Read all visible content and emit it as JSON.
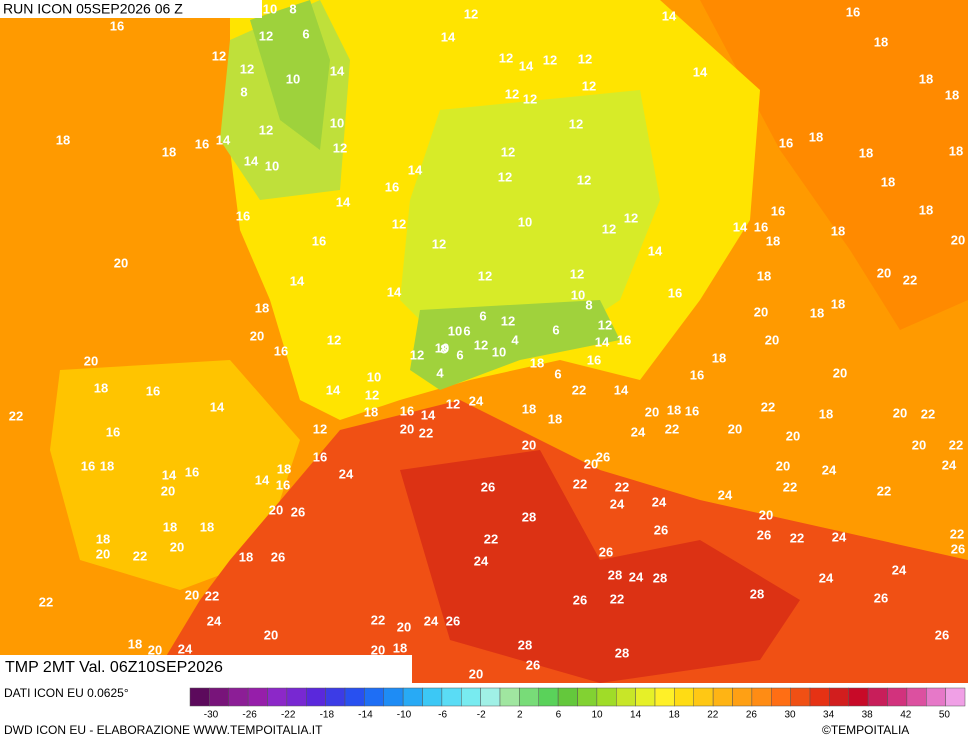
{
  "header": {
    "title": "RUN ICON 05SEP2026 06 Z"
  },
  "map_labels": [
    10,
    8,
    16,
    12,
    6,
    14,
    12,
    14,
    16,
    18,
    12,
    12,
    14,
    12,
    14,
    12,
    12,
    14,
    18,
    10,
    8,
    18,
    12,
    12,
    12,
    10,
    12,
    12,
    18,
    16,
    14,
    18,
    16,
    18,
    12,
    18,
    12,
    18,
    14,
    10,
    14,
    12,
    12,
    18,
    16,
    14,
    18,
    16,
    16,
    12,
    10,
    12,
    12,
    14,
    16,
    18,
    20,
    16,
    12,
    18,
    20,
    14,
    20,
    22,
    14,
    12,
    12,
    18,
    14,
    16,
    10,
    18,
    8,
    18,
    18,
    20,
    6,
    12,
    10,
    6,
    12,
    6,
    20,
    12,
    12,
    14,
    16,
    8,
    4,
    20,
    16,
    12,
    10,
    6,
    10,
    18,
    18,
    20,
    16,
    6,
    4,
    10,
    16,
    18,
    16,
    14,
    20,
    22,
    14,
    12,
    22,
    14,
    18,
    16,
    14,
    12,
    24,
    18,
    18,
    20,
    18,
    16,
    22,
    18,
    20,
    22,
    16,
    12,
    20,
    22,
    24,
    22,
    20,
    20,
    20,
    22,
    20,
    26,
    16,
    18,
    14,
    16,
    18,
    16,
    24,
    20,
    20,
    24,
    24,
    20,
    14,
    16,
    26,
    22,
    22,
    22,
    22,
    24,
    24,
    20,
    26,
    28,
    24,
    20,
    18,
    18,
    26,
    18,
    22,
    26,
    22,
    24,
    22,
    20,
    20,
    22,
    18,
    26,
    26,
    24,
    26,
    24,
    28,
    24,
    28,
    24,
    20,
    22,
    28,
    26,
    22,
    26,
    22,
    24,
    22,
    20,
    24,
    26,
    20,
    26,
    18,
    20,
    24,
    20,
    18,
    28,
    28,
    26,
    20
  ],
  "variable_label": "TMP 2MT Val. 06Z10SEP2026",
  "colorbar": {
    "colors": [
      "#5c0a5c",
      "#78147a",
      "#8c1e96",
      "#961eaa",
      "#8c28c8",
      "#7828d2",
      "#5a28dc",
      "#3c3ce6",
      "#2850f0",
      "#1e6ef5",
      "#1e8cf5",
      "#28aaf5",
      "#3cc8f5",
      "#5adcf5",
      "#78ebf0",
      "#a0f0e6",
      "#a0e6a0",
      "#78dc78",
      "#5ad25a",
      "#64c83c",
      "#82d232",
      "#a0dc28",
      "#c8e628",
      "#e6f028",
      "#fff028",
      "#ffdc14",
      "#ffc814",
      "#ffb414",
      "#ffa014",
      "#ff8c14",
      "#ff6e14",
      "#f05014",
      "#e63214",
      "#d21e1e",
      "#c80a28",
      "#c81e5a",
      "#d2327d",
      "#dc50a0",
      "#e678c8",
      "#f0a0e6"
    ],
    "ticks": [
      -30,
      -26,
      -22,
      -18,
      -14,
      -10,
      -6,
      -2,
      2,
      6,
      10,
      14,
      18,
      22,
      26,
      30,
      34,
      38,
      42,
      50
    ]
  },
  "footer": {
    "source": "DATI ICON EU 0.0625°",
    "credit": "DWD ICON EU - ELABORAZIONE WWW.TEMPOITALIA.IT",
    "copyright": "©TEMPOITALIA"
  }
}
